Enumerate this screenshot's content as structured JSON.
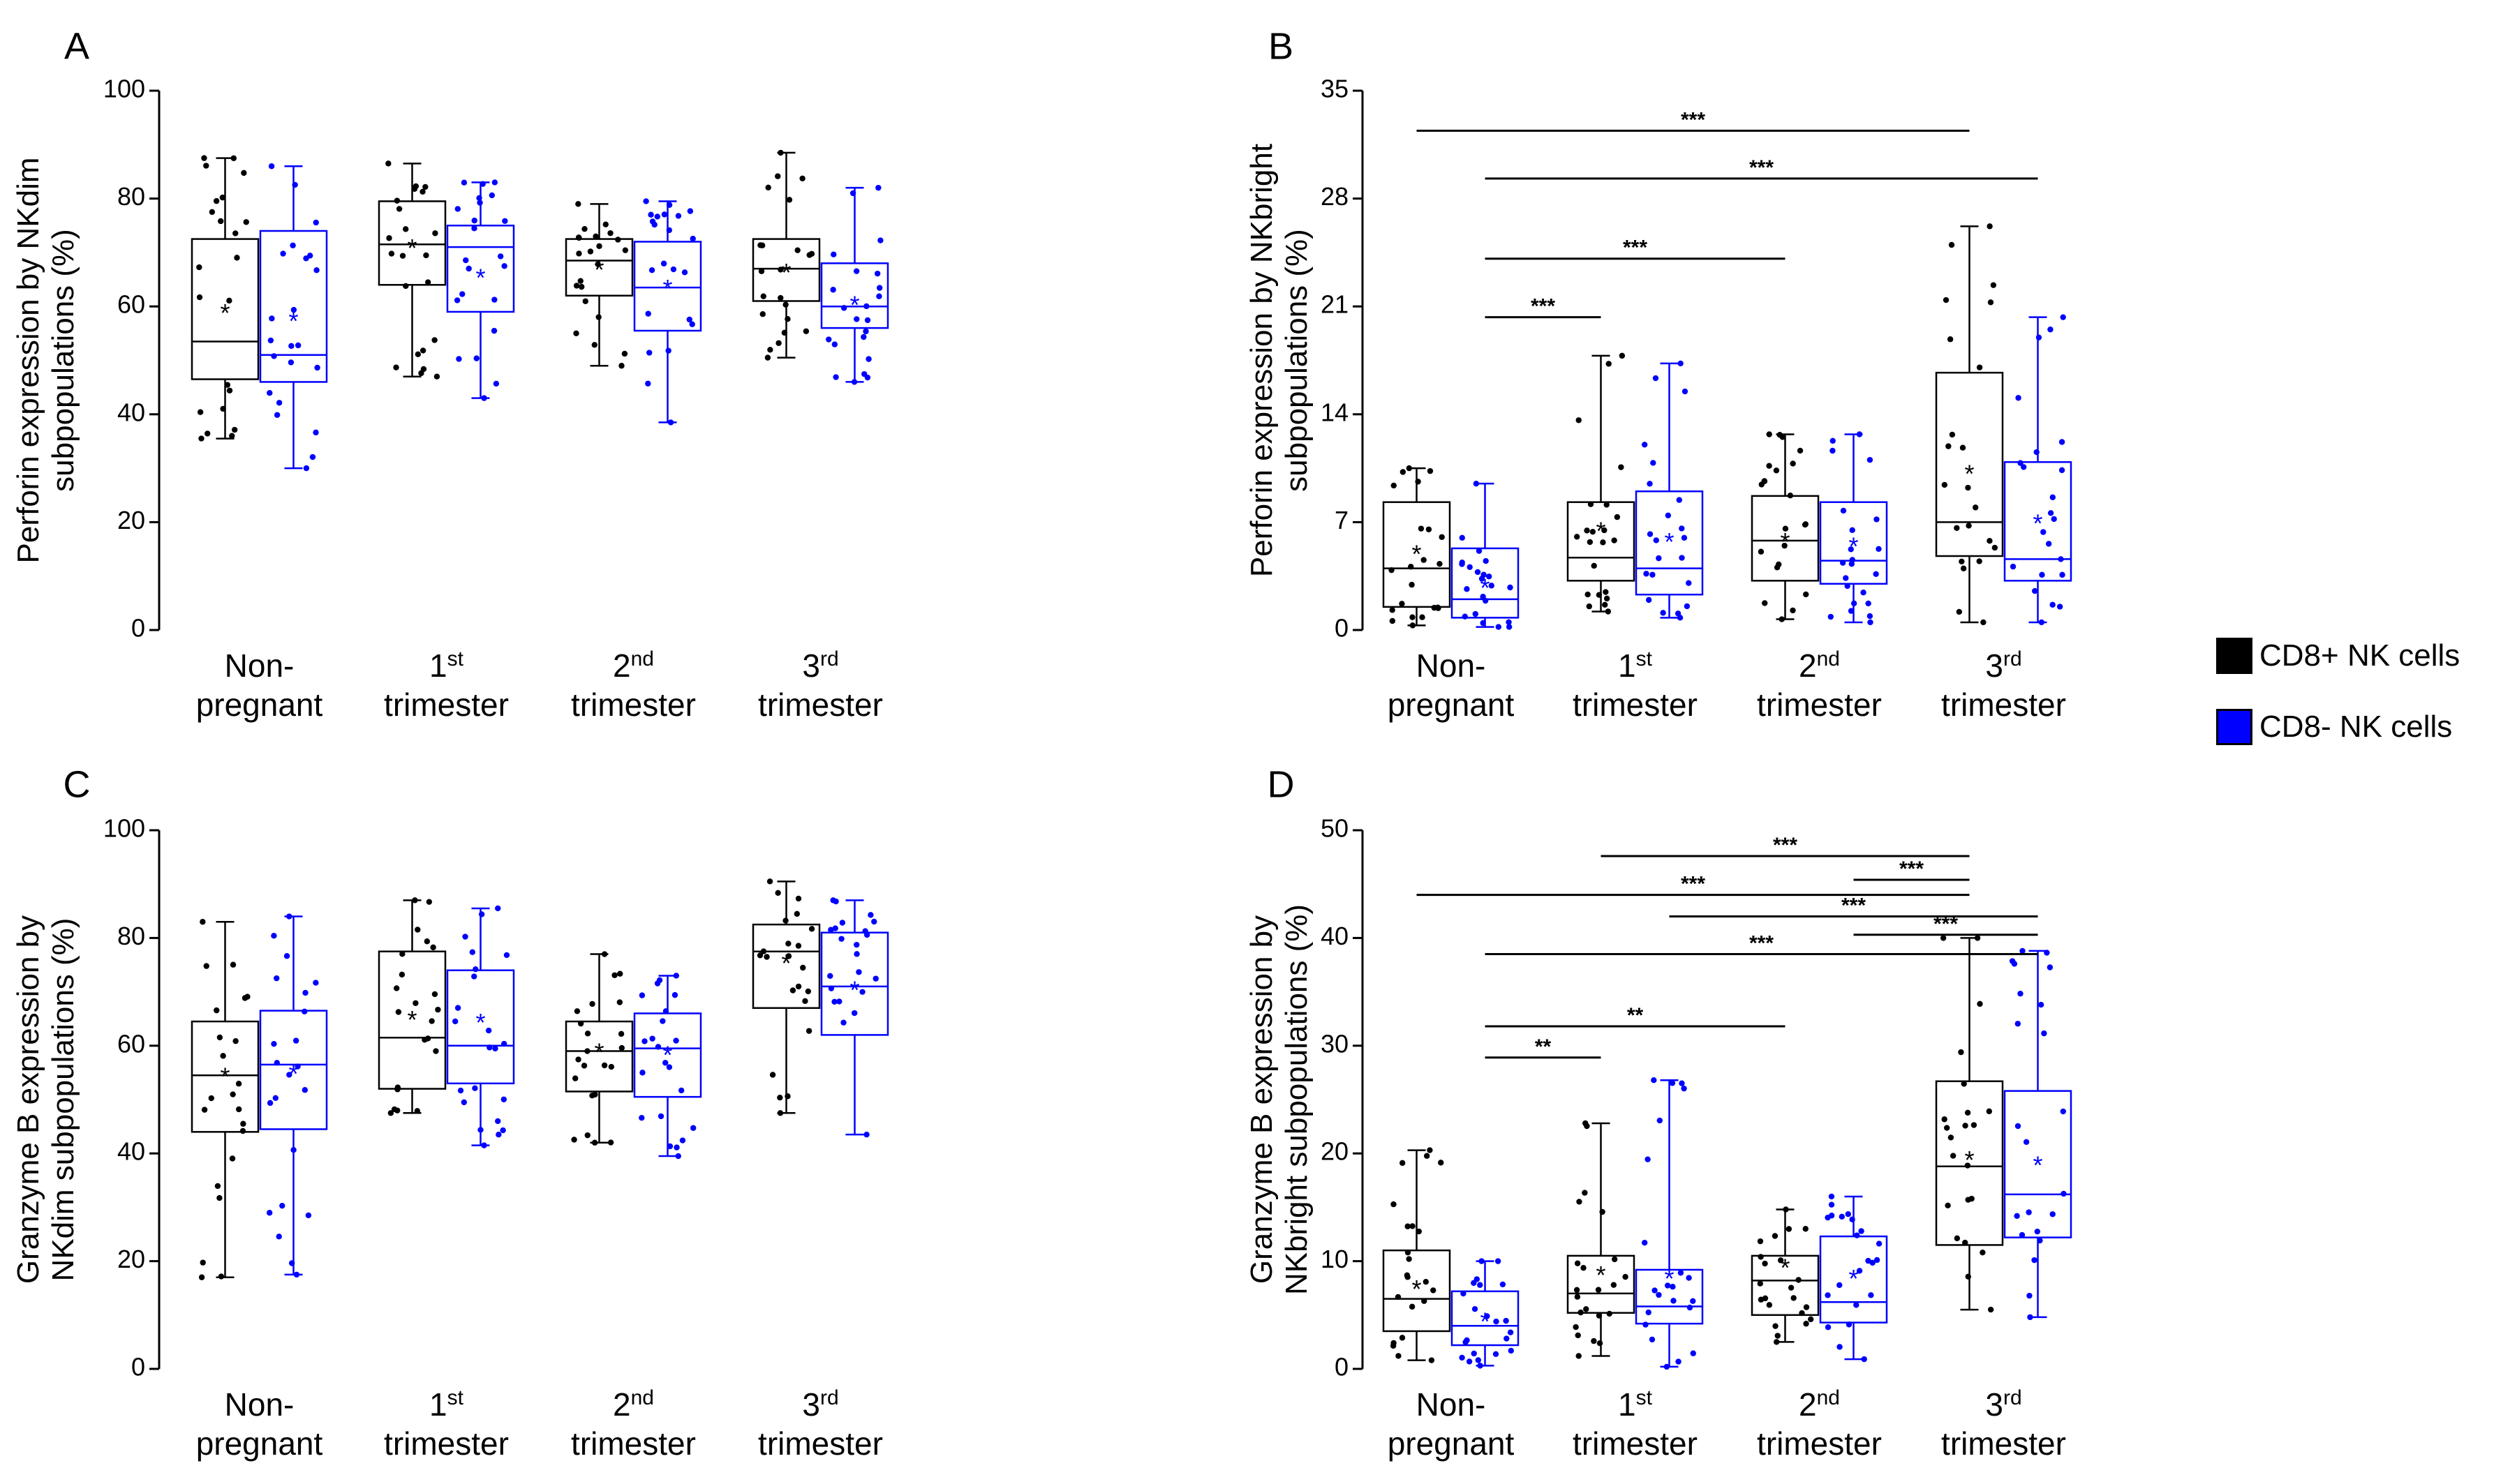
{
  "legend": {
    "cd8_pos": {
      "label": "CD8+ NK cells",
      "color": "#000000"
    },
    "cd8_neg": {
      "label": "CD8- NK cells",
      "color": "#0000ff"
    }
  },
  "chart_data": [
    {
      "type": "box",
      "panel": "A",
      "ylabel": [
        "Perforin expression by NKdim",
        "subpopulations (%)"
      ],
      "ylim": [
        0,
        100
      ],
      "yticks": [
        0,
        20,
        40,
        60,
        80,
        100
      ],
      "groups": [
        {
          "line1": "Non-",
          "line2": "pregnant"
        },
        {
          "line1": "1",
          "sup": "st",
          "line2": "trimester"
        },
        {
          "line1": "2",
          "sup": "nd",
          "line2": "trimester"
        },
        {
          "line1": "3",
          "sup": "rd",
          "line2": "trimester"
        }
      ],
      "series": [
        {
          "name": "CD8+ NK cells",
          "boxes": [
            {
              "min": 35.5,
              "q1": 46.5,
              "median": 53.5,
              "q3": 72.5,
              "max": 87.5,
              "mean": 59.0
            },
            {
              "min": 47.0,
              "q1": 64.0,
              "median": 71.5,
              "q3": 79.5,
              "max": 86.5,
              "mean": 71.0
            },
            {
              "min": 49.0,
              "q1": 62.0,
              "median": 68.5,
              "q3": 72.5,
              "max": 79.0,
              "mean": 67.0
            },
            {
              "min": 50.5,
              "q1": 61.0,
              "median": 67.0,
              "q3": 72.5,
              "max": 88.5,
              "mean": 66.5
            }
          ]
        },
        {
          "name": "CD8- NK cells",
          "boxes": [
            {
              "min": 30.0,
              "q1": 46.0,
              "median": 51.0,
              "q3": 74.0,
              "max": 86.0,
              "mean": 57.5
            },
            {
              "min": 43.0,
              "q1": 59.0,
              "median": 71.0,
              "q3": 75.0,
              "max": 83.0,
              "mean": 65.5
            },
            {
              "min": 38.5,
              "q1": 55.5,
              "median": 63.5,
              "q3": 72.0,
              "max": 79.5,
              "mean": 63.5
            },
            {
              "min": 46.0,
              "q1": 56.0,
              "median": 60.0,
              "q3": 68.0,
              "max": 82.0,
              "mean": 60.5
            }
          ]
        }
      ],
      "significance": []
    },
    {
      "type": "box",
      "panel": "B",
      "ylabel": [
        "Perforin expression by NKbright",
        "subpopulations (%)"
      ],
      "ylim": [
        0,
        35
      ],
      "yticks": [
        0,
        7,
        14,
        21,
        28,
        35
      ],
      "groups": [
        {
          "line1": "Non-",
          "line2": "pregnant"
        },
        {
          "line1": "1",
          "sup": "st",
          "line2": "trimester"
        },
        {
          "line1": "2",
          "sup": "nd",
          "line2": "trimester"
        },
        {
          "line1": "3",
          "sup": "rd",
          "line2": "trimester"
        }
      ],
      "series": [
        {
          "name": "CD8+ NK cells",
          "boxes": [
            {
              "min": 0.3,
              "q1": 1.5,
              "median": 4.0,
              "q3": 8.3,
              "max": 10.5,
              "mean": 5.0
            },
            {
              "min": 1.2,
              "q1": 3.2,
              "median": 4.7,
              "q3": 8.3,
              "max": 17.8,
              "mean": 6.5
            },
            {
              "min": 0.7,
              "q1": 3.2,
              "median": 5.8,
              "q3": 8.7,
              "max": 12.7,
              "mean": 5.8
            },
            {
              "min": 0.5,
              "q1": 4.8,
              "median": 7.0,
              "q3": 16.7,
              "max": 26.2,
              "mean": 10.2
            }
          ]
        },
        {
          "name": "CD8- NK cells",
          "boxes": [
            {
              "min": 0.2,
              "q1": 0.8,
              "median": 2.0,
              "q3": 5.3,
              "max": 9.5,
              "mean": 2.8
            },
            {
              "min": 0.8,
              "q1": 2.3,
              "median": 4.0,
              "q3": 9.0,
              "max": 17.3,
              "mean": 5.8
            },
            {
              "min": 0.5,
              "q1": 3.0,
              "median": 4.5,
              "q3": 8.3,
              "max": 12.7,
              "mean": 5.5
            },
            {
              "min": 0.5,
              "q1": 3.2,
              "median": 4.6,
              "q3": 10.9,
              "max": 20.3,
              "mean": 7.0
            }
          ]
        }
      ],
      "significance": [
        {
          "text": "***",
          "from": [
            0,
            0
          ],
          "to": [
            3,
            0
          ],
          "y": 32.4
        },
        {
          "text": "***",
          "from": [
            0,
            1
          ],
          "to": [
            3,
            1
          ],
          "y": 29.3
        },
        {
          "text": "***",
          "from": [
            0,
            1
          ],
          "to": [
            2,
            0
          ],
          "y": 24.1
        },
        {
          "text": "***",
          "from": [
            0,
            1
          ],
          "to": [
            1,
            0
          ],
          "y": 20.3
        }
      ]
    },
    {
      "type": "box",
      "panel": "C",
      "ylabel": [
        "Granzyme B expression by",
        "NKdim subpopulations (%)"
      ],
      "ylim": [
        0,
        100
      ],
      "yticks": [
        0,
        20,
        40,
        60,
        80,
        100
      ],
      "groups": [
        {
          "line1": "Non-",
          "line2": "pregnant"
        },
        {
          "line1": "1",
          "sup": "st",
          "line2": "trimester"
        },
        {
          "line1": "2",
          "sup": "nd",
          "line2": "trimester"
        },
        {
          "line1": "3",
          "sup": "rd",
          "line2": "trimester"
        }
      ],
      "series": [
        {
          "name": "CD8+ NK cells",
          "boxes": [
            {
              "min": 17.0,
              "q1": 44.0,
              "median": 54.5,
              "q3": 64.5,
              "max": 83.0,
              "mean": 54.5
            },
            {
              "min": 47.5,
              "q1": 52.0,
              "median": 61.5,
              "q3": 77.5,
              "max": 87.0,
              "mean": 65.0
            },
            {
              "min": 42.0,
              "q1": 51.5,
              "median": 59.0,
              "q3": 64.5,
              "max": 77.0,
              "mean": 59.0
            },
            {
              "min": 47.5,
              "q1": 67.0,
              "median": 77.5,
              "q3": 82.5,
              "max": 90.5,
              "mean": 75.5
            }
          ]
        },
        {
          "name": "CD8- NK cells",
          "boxes": [
            {
              "min": 17.5,
              "q1": 44.5,
              "median": 56.5,
              "q3": 66.5,
              "max": 84.0,
              "mean": 55.0
            },
            {
              "min": 41.5,
              "q1": 53.0,
              "median": 60.0,
              "q3": 74.0,
              "max": 85.5,
              "mean": 64.5
            },
            {
              "min": 39.5,
              "q1": 50.5,
              "median": 59.5,
              "q3": 66.0,
              "max": 73.0,
              "mean": 58.5
            },
            {
              "min": 43.5,
              "q1": 62.0,
              "median": 71.0,
              "q3": 81.0,
              "max": 87.0,
              "mean": 70.5
            }
          ]
        }
      ],
      "significance": []
    },
    {
      "type": "box",
      "panel": "D",
      "ylabel": [
        "Granzyme B expression by",
        "NKbright subpopulations (%)"
      ],
      "ylim": [
        0,
        50
      ],
      "yticks": [
        0,
        10,
        20,
        30,
        40,
        50
      ],
      "groups": [
        {
          "line1": "Non-",
          "line2": "pregnant"
        },
        {
          "line1": "1",
          "sup": "st",
          "line2": "trimester"
        },
        {
          "line1": "2",
          "sup": "nd",
          "line2": "trimester"
        },
        {
          "line1": "3",
          "sup": "rd",
          "line2": "trimester"
        }
      ],
      "series": [
        {
          "name": "CD8+ NK cells",
          "boxes": [
            {
              "min": 0.8,
              "q1": 3.5,
              "median": 6.5,
              "q3": 11.0,
              "max": 20.3,
              "mean": 7.5
            },
            {
              "min": 1.2,
              "q1": 5.2,
              "median": 7.0,
              "q3": 10.5,
              "max": 22.8,
              "mean": 8.8
            },
            {
              "min": 2.5,
              "q1": 5.0,
              "median": 8.2,
              "q3": 10.5,
              "max": 14.8,
              "mean": 9.5
            },
            {
              "min": 5.5,
              "q1": 11.5,
              "median": 18.8,
              "q3": 26.7,
              "max": 40.0,
              "mean": 19.5
            }
          ]
        },
        {
          "name": "CD8- NK cells",
          "boxes": [
            {
              "min": 0.3,
              "q1": 2.2,
              "median": 4.0,
              "q3": 7.2,
              "max": 10.0,
              "mean": 4.5
            },
            {
              "min": 0.2,
              "q1": 4.2,
              "median": 5.8,
              "q3": 9.2,
              "max": 26.8,
              "mean": 8.5
            },
            {
              "min": 0.9,
              "q1": 4.3,
              "median": 6.2,
              "q3": 12.3,
              "max": 16.0,
              "mean": 8.5
            },
            {
              "min": 4.8,
              "q1": 12.2,
              "median": 16.2,
              "q3": 25.8,
              "max": 38.8,
              "mean": 19.0
            }
          ]
        }
      ],
      "significance": [
        {
          "text": "***",
          "from": [
            1,
            0
          ],
          "to": [
            3,
            0
          ],
          "y": 47.6
        },
        {
          "text": "***",
          "from": [
            2,
            1
          ],
          "to": [
            3,
            0
          ],
          "y": 45.4
        },
        {
          "text": "***",
          "from": [
            0,
            0
          ],
          "to": [
            3,
            0
          ],
          "y": 44.0
        },
        {
          "text": "***",
          "from": [
            1,
            1
          ],
          "to": [
            3,
            1
          ],
          "y": 42.0
        },
        {
          "text": "***",
          "from": [
            2,
            1
          ],
          "to": [
            3,
            1
          ],
          "y": 40.3
        },
        {
          "text": "***",
          "from": [
            0,
            1
          ],
          "to": [
            3,
            1
          ],
          "y": 38.5
        },
        {
          "text": "**",
          "from": [
            0,
            1
          ],
          "to": [
            2,
            0
          ],
          "y": 31.8
        },
        {
          "text": "**",
          "from": [
            0,
            1
          ],
          "to": [
            1,
            0
          ],
          "y": 28.9
        }
      ]
    }
  ]
}
